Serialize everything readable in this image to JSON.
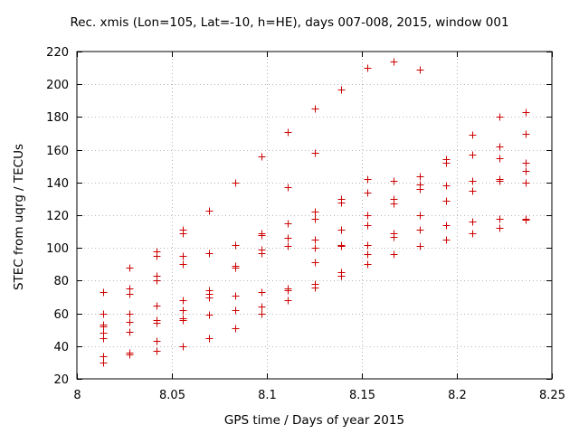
{
  "chart_data": {
    "type": "scatter",
    "title": "Rec. xmis (Lon=105, Lat=-10, h=HE), days 007-008, 2015, window 001",
    "xlabel": "GPS time / Days of year 2015",
    "ylabel": "STEC from uqrg / TECUs",
    "xlim": [
      8,
      8.25
    ],
    "ylim": [
      20,
      220
    ],
    "xticks": [
      8,
      8.05,
      8.1,
      8.15,
      8.2,
      8.25
    ],
    "xtick_labels": [
      "8",
      "8.05",
      "8.1",
      "8.15",
      "8.2",
      "8.25"
    ],
    "yticks": [
      20,
      40,
      60,
      80,
      100,
      120,
      140,
      160,
      180,
      200,
      220
    ],
    "ytick_labels": [
      "20",
      "40",
      "60",
      "80",
      "100",
      "120",
      "140",
      "160",
      "180",
      "200",
      "220"
    ],
    "grid": true,
    "marker": "+",
    "marker_color": "#cc0000",
    "points": [
      [
        8.0139,
        73
      ],
      [
        8.0139,
        60
      ],
      [
        8.0139,
        53
      ],
      [
        8.0139,
        52
      ],
      [
        8.0139,
        48
      ],
      [
        8.0139,
        45
      ],
      [
        8.0139,
        34
      ],
      [
        8.0139,
        30
      ],
      [
        8.0278,
        88
      ],
      [
        8.0278,
        75
      ],
      [
        8.0278,
        72
      ],
      [
        8.0278,
        60
      ],
      [
        8.0278,
        55
      ],
      [
        8.0278,
        49
      ],
      [
        8.0278,
        36
      ],
      [
        8.0278,
        35
      ],
      [
        8.0417,
        98
      ],
      [
        8.0417,
        95
      ],
      [
        8.0417,
        83
      ],
      [
        8.0417,
        80
      ],
      [
        8.0417,
        65
      ],
      [
        8.0417,
        56
      ],
      [
        8.0417,
        54
      ],
      [
        8.0417,
        43
      ],
      [
        8.0417,
        37
      ],
      [
        8.0556,
        111
      ],
      [
        8.0556,
        109
      ],
      [
        8.0556,
        95
      ],
      [
        8.0556,
        90
      ],
      [
        8.0556,
        68
      ],
      [
        8.0556,
        62
      ],
      [
        8.0556,
        57
      ],
      [
        8.0556,
        56
      ],
      [
        8.0556,
        40
      ],
      [
        8.0694,
        123
      ],
      [
        8.0694,
        97
      ],
      [
        8.0694,
        74
      ],
      [
        8.0694,
        72
      ],
      [
        8.0694,
        70
      ],
      [
        8.0694,
        59
      ],
      [
        8.0694,
        45
      ],
      [
        8.0833,
        140
      ],
      [
        8.0833,
        102
      ],
      [
        8.0833,
        89
      ],
      [
        8.0833,
        88
      ],
      [
        8.0833,
        71
      ],
      [
        8.0833,
        62
      ],
      [
        8.0833,
        51
      ],
      [
        8.0972,
        156
      ],
      [
        8.0972,
        109
      ],
      [
        8.0972,
        108
      ],
      [
        8.0972,
        99
      ],
      [
        8.0972,
        97
      ],
      [
        8.0972,
        73
      ],
      [
        8.0972,
        64
      ],
      [
        8.0972,
        60
      ],
      [
        8.1111,
        171
      ],
      [
        8.1111,
        137
      ],
      [
        8.1111,
        115
      ],
      [
        8.1111,
        106
      ],
      [
        8.1111,
        101
      ],
      [
        8.1111,
        75
      ],
      [
        8.1111,
        74
      ],
      [
        8.1111,
        68
      ],
      [
        8.125,
        185
      ],
      [
        8.125,
        158
      ],
      [
        8.125,
        122
      ],
      [
        8.125,
        118
      ],
      [
        8.125,
        105
      ],
      [
        8.125,
        100
      ],
      [
        8.125,
        91
      ],
      [
        8.125,
        78
      ],
      [
        8.125,
        76
      ],
      [
        8.1389,
        197
      ],
      [
        8.1389,
        130
      ],
      [
        8.1389,
        128
      ],
      [
        8.1389,
        111
      ],
      [
        8.1389,
        102
      ],
      [
        8.1389,
        101
      ],
      [
        8.1389,
        85
      ],
      [
        8.1389,
        83
      ],
      [
        8.1528,
        210
      ],
      [
        8.1528,
        142
      ],
      [
        8.1528,
        134
      ],
      [
        8.1528,
        120
      ],
      [
        8.1528,
        114
      ],
      [
        8.1528,
        102
      ],
      [
        8.1528,
        96
      ],
      [
        8.1528,
        90
      ],
      [
        8.1667,
        214
      ],
      [
        8.1667,
        141
      ],
      [
        8.1667,
        130
      ],
      [
        8.1667,
        127
      ],
      [
        8.1667,
        109
      ],
      [
        8.1667,
        107
      ],
      [
        8.1667,
        96
      ],
      [
        8.1806,
        209
      ],
      [
        8.1806,
        144
      ],
      [
        8.1806,
        139
      ],
      [
        8.1806,
        136
      ],
      [
        8.1806,
        120
      ],
      [
        8.1806,
        111
      ],
      [
        8.1806,
        101
      ],
      [
        8.1944,
        154
      ],
      [
        8.1944,
        152
      ],
      [
        8.1944,
        138
      ],
      [
        8.1944,
        129
      ],
      [
        8.1944,
        114
      ],
      [
        8.1944,
        105
      ],
      [
        8.2083,
        169
      ],
      [
        8.2083,
        157
      ],
      [
        8.2083,
        141
      ],
      [
        8.2083,
        135
      ],
      [
        8.2083,
        116
      ],
      [
        8.2083,
        109
      ],
      [
        8.2222,
        180
      ],
      [
        8.2222,
        162
      ],
      [
        8.2222,
        155
      ],
      [
        8.2222,
        142
      ],
      [
        8.2222,
        141
      ],
      [
        8.2222,
        118
      ],
      [
        8.2222,
        112
      ],
      [
        8.2361,
        183
      ],
      [
        8.2361,
        170
      ],
      [
        8.2361,
        152
      ],
      [
        8.2361,
        147
      ],
      [
        8.2361,
        140
      ],
      [
        8.2361,
        118
      ],
      [
        8.2361,
        117
      ]
    ]
  }
}
